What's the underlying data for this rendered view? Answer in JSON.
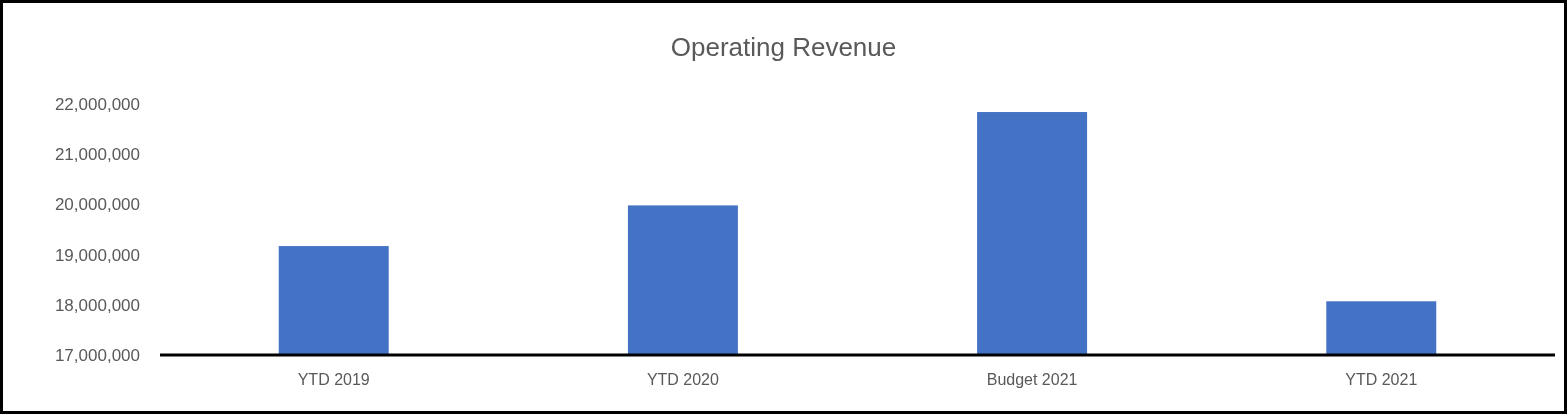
{
  "chart_data": {
    "type": "bar",
    "title": "Operating Revenue",
    "categories": [
      "YTD 2019",
      "YTD 2020",
      "Budget 2021",
      "YTD 2021"
    ],
    "values": [
      19170000,
      19980000,
      21840000,
      18070000
    ],
    "color": "#4472c4",
    "ylim": [
      17000000,
      22000000
    ],
    "yticks": [
      {
        "value": 17000000,
        "label": "17,000,000"
      },
      {
        "value": 18000000,
        "label": "18,000,000"
      },
      {
        "value": 19000000,
        "label": "19,000,000"
      },
      {
        "value": 20000000,
        "label": "20,000,000"
      },
      {
        "value": 21000000,
        "label": "21,000,000"
      },
      {
        "value": 22000000,
        "label": "22,000,000"
      }
    ],
    "grid": false
  }
}
